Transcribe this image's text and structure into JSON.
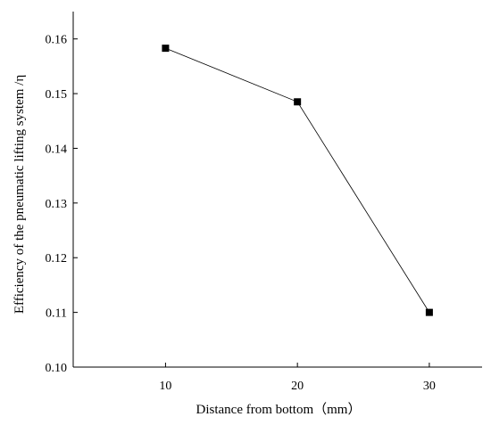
{
  "chart_data": {
    "type": "line",
    "title": "",
    "xlabel": "Distance from bottom（mm）",
    "ylabel": "Efficiency of the pneumatic lifting system /η",
    "x": [
      10,
      20,
      30
    ],
    "series": [
      {
        "values": [
          0.1583,
          0.1485,
          0.11
        ],
        "marker": "square",
        "color": "#000000"
      }
    ],
    "xlim": [
      3,
      34
    ],
    "ylim": [
      0.1,
      0.165
    ],
    "xticks": [
      10,
      20,
      30
    ],
    "xtick_labels": [
      "10",
      "20",
      "30"
    ],
    "yticks": [
      0.1,
      0.11,
      0.12,
      0.13,
      0.14,
      0.15,
      0.16
    ],
    "ytick_labels": [
      "0.10",
      "0.11",
      "0.12",
      "0.13",
      "0.14",
      "0.15",
      "0.16"
    ],
    "grid": false,
    "legend": "none"
  }
}
